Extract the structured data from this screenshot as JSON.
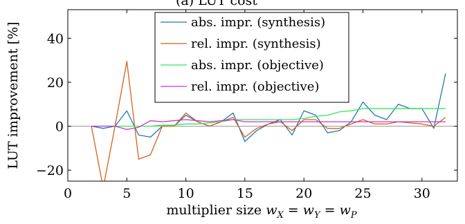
{
  "chart_data": {
    "type": "line",
    "title": "(a) LUT cost",
    "xlabel": "multiplier size w_X = w_Y = w_P",
    "ylabel": "LUT improvement [%]",
    "xlim": [
      0,
      33
    ],
    "ylim": [
      -25,
      53
    ],
    "xticks": [
      0,
      5,
      10,
      15,
      20,
      25,
      30
    ],
    "yticks": [
      -20,
      0,
      20,
      40
    ],
    "grid": false,
    "legend_position": "top-center",
    "x": [
      2,
      3,
      4,
      5,
      6,
      7,
      8,
      9,
      10,
      11,
      12,
      13,
      14,
      15,
      16,
      17,
      18,
      19,
      20,
      21,
      22,
      23,
      24,
      25,
      26,
      27,
      28,
      29,
      30,
      31,
      32
    ],
    "series": [
      {
        "name": "abs. impr. (synthesis)",
        "color": "#1f77b4",
        "values": [
          0,
          -1,
          0,
          7,
          -4,
          -5,
          0,
          0,
          5,
          2,
          0,
          2,
          6,
          -7,
          -2,
          1,
          3,
          -4,
          7,
          5,
          -3,
          -2,
          2,
          11,
          5,
          3,
          10,
          8,
          8,
          -1,
          24
        ]
      },
      {
        "name": "rel. impr. (synthesis)",
        "color": "#d95f1b",
        "values": [
          0,
          -28,
          0,
          29.5,
          -15,
          -13,
          0,
          0,
          6,
          2,
          0,
          2,
          4,
          -5,
          -1,
          1,
          2,
          -2,
          3,
          3,
          -1,
          -1,
          1,
          3,
          1,
          1,
          2,
          1.5,
          1,
          0,
          4
        ]
      },
      {
        "name": "abs. impr. (objective)",
        "color": "#33e65c",
        "values": [
          0,
          0,
          0,
          0,
          0,
          0,
          0.5,
          0.5,
          1,
          1,
          1.5,
          2,
          3,
          3,
          3,
          3,
          3,
          3,
          3.5,
          4.5,
          5,
          6.5,
          7,
          8,
          8,
          8,
          8,
          8,
          8,
          8,
          8
        ]
      },
      {
        "name": "rel. impr. (objective)",
        "color": "#cc33cc",
        "values": [
          0,
          0,
          0,
          -1.5,
          -0.5,
          2.5,
          2,
          2.5,
          3,
          2.5,
          2,
          2.5,
          3,
          2,
          2,
          2,
          2,
          2,
          2,
          2,
          2,
          2,
          2,
          2,
          2,
          2,
          2,
          2,
          2,
          2,
          2
        ]
      }
    ]
  }
}
